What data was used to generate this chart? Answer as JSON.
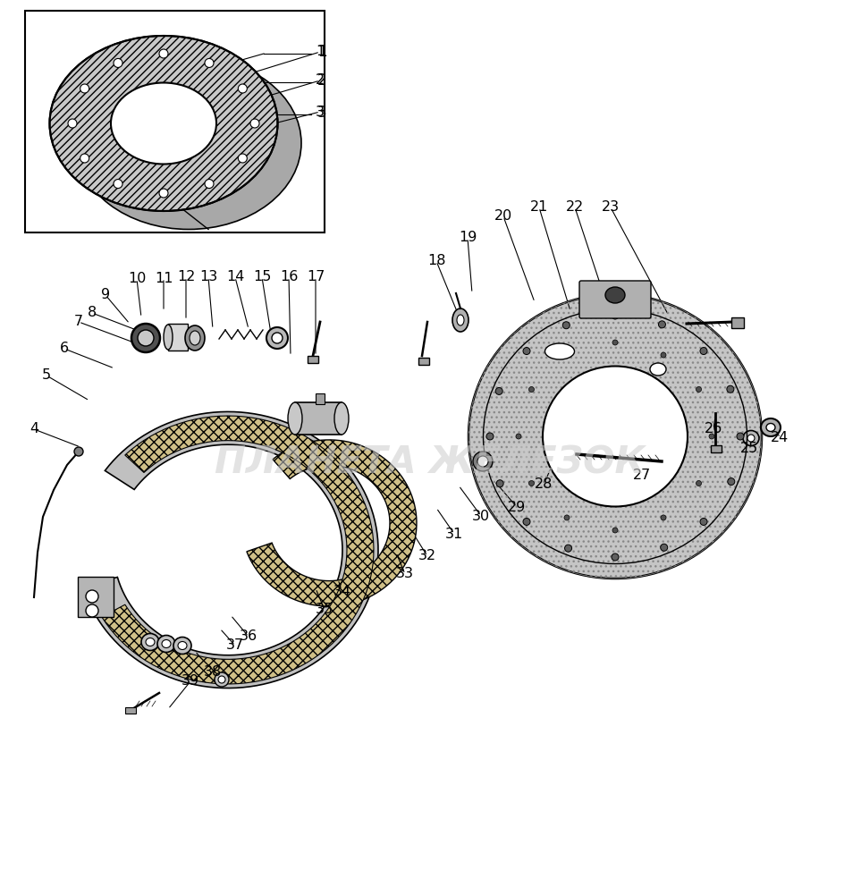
{
  "bg_color": "#ffffff",
  "line_color": "#000000",
  "watermark": "ПЛАНЕТА ЖЕЛЕЗОК",
  "figsize": [
    9.63,
    9.92
  ],
  "dpi": 100,
  "bolt_angles_drum": [
    0,
    30,
    60,
    90,
    120,
    150,
    180,
    210,
    240,
    270,
    300,
    330
  ],
  "bolt_angles_plate": [
    0,
    22,
    45,
    67,
    90,
    112,
    135,
    157,
    180,
    202,
    225,
    247,
    270,
    292,
    315,
    337
  ],
  "leaders": [
    [
      1,
      358,
      58,
      248,
      92
    ],
    [
      2,
      358,
      90,
      240,
      125
    ],
    [
      3,
      358,
      125,
      228,
      158
    ],
    [
      4,
      38,
      480,
      90,
      500
    ],
    [
      5,
      52,
      420,
      100,
      448
    ],
    [
      6,
      72,
      390,
      128,
      412
    ],
    [
      7,
      88,
      360,
      155,
      385
    ],
    [
      8,
      103,
      350,
      168,
      375
    ],
    [
      9,
      118,
      330,
      145,
      362
    ],
    [
      10,
      153,
      312,
      158,
      355
    ],
    [
      11,
      183,
      311,
      183,
      348
    ],
    [
      12,
      208,
      310,
      208,
      358
    ],
    [
      13,
      233,
      310,
      238,
      368
    ],
    [
      14,
      263,
      310,
      278,
      368
    ],
    [
      15,
      293,
      310,
      303,
      373
    ],
    [
      16,
      323,
      310,
      325,
      398
    ],
    [
      17,
      353,
      310,
      353,
      398
    ],
    [
      18,
      488,
      292,
      513,
      353
    ],
    [
      19,
      523,
      266,
      528,
      328
    ],
    [
      20,
      563,
      242,
      598,
      338
    ],
    [
      21,
      603,
      232,
      638,
      348
    ],
    [
      22,
      643,
      232,
      678,
      338
    ],
    [
      23,
      683,
      232,
      748,
      353
    ],
    [
      24,
      872,
      490,
      868,
      478
    ],
    [
      25,
      838,
      502,
      841,
      488
    ],
    [
      26,
      798,
      480,
      800,
      466
    ],
    [
      27,
      718,
      532,
      698,
      508
    ],
    [
      28,
      608,
      542,
      623,
      508
    ],
    [
      29,
      578,
      567,
      553,
      538
    ],
    [
      30,
      538,
      577,
      513,
      543
    ],
    [
      31,
      508,
      597,
      488,
      568
    ],
    [
      32,
      478,
      622,
      463,
      598
    ],
    [
      33,
      453,
      642,
      443,
      618
    ],
    [
      34,
      383,
      662,
      378,
      648
    ],
    [
      35,
      363,
      682,
      353,
      658
    ],
    [
      36,
      278,
      712,
      258,
      688
    ],
    [
      37,
      263,
      722,
      246,
      703
    ],
    [
      38,
      238,
      752,
      218,
      728
    ],
    [
      39,
      213,
      762,
      188,
      793
    ]
  ]
}
